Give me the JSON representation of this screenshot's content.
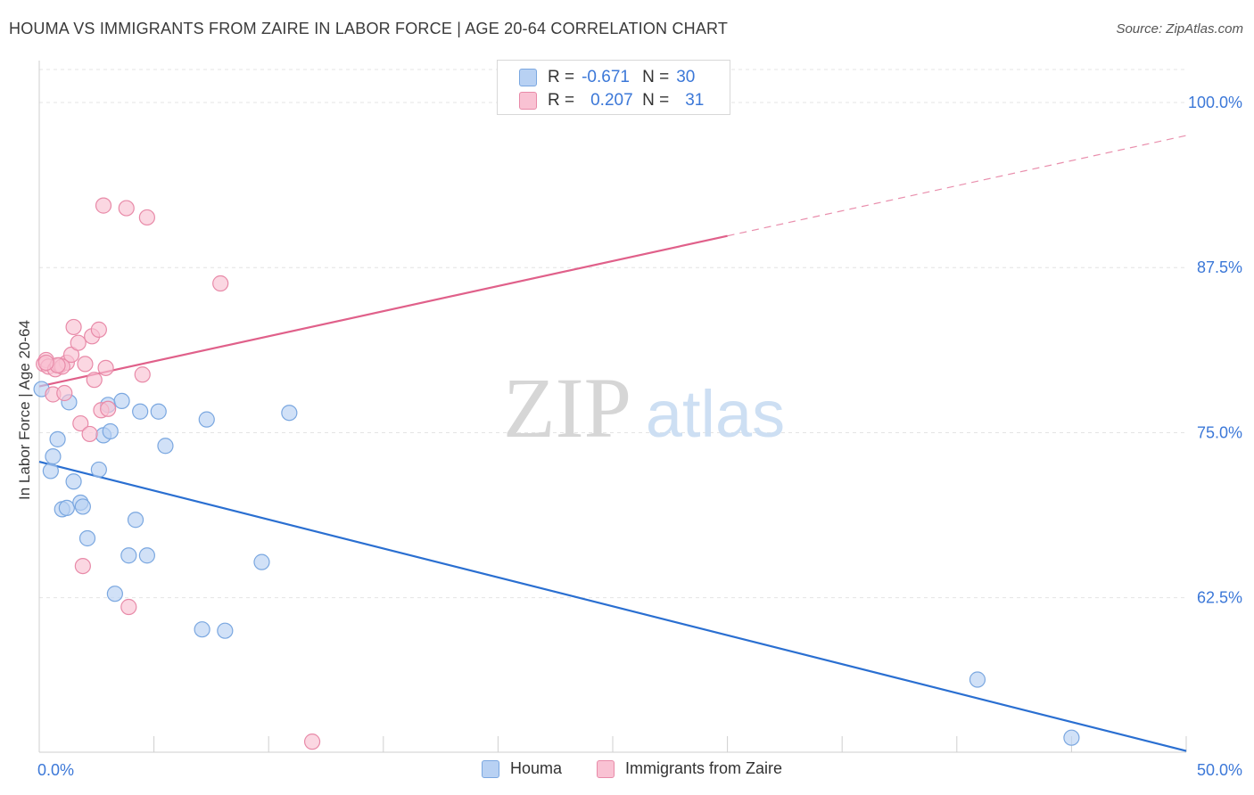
{
  "title": "HOUMA VS IMMIGRANTS FROM ZAIRE IN LABOR FORCE | AGE 20-64 CORRELATION CHART",
  "source": "Source: ZipAtlas.com",
  "watermark": {
    "zip": "ZIP",
    "atlas": "atlas"
  },
  "legend_top": [
    {
      "r_label": "R = ",
      "r_value": "-0.671",
      "n_label": "N = ",
      "n_value": "30"
    },
    {
      "r_label": "R = ",
      "r_value": "0.207",
      "n_label": "N = ",
      "n_value": "31"
    }
  ],
  "colors": {
    "houma_fill": "#b8d1f3",
    "houma_stroke": "#7aa7e0",
    "houma_line": "#2a6fd1",
    "zaire_fill": "#f9c2d3",
    "zaire_stroke": "#e88aa8",
    "zaire_line": "#e0608a",
    "tick_label": "#3c78d8",
    "grid": "#e4e4e4"
  },
  "chart_data": {
    "type": "scatter",
    "title": "HOUMA VS IMMIGRANTS FROM ZAIRE IN LABOR FORCE | AGE 20-64 CORRELATION CHART",
    "xlabel": "",
    "ylabel": "In Labor Force | Age 20-64",
    "xlim": [
      0,
      50
    ],
    "ylim": [
      50.8,
      102.5
    ],
    "x_tick_labels": [
      "0.0%",
      "50.0%"
    ],
    "y_ticks": [
      62.5,
      75.0,
      87.5,
      100.0
    ],
    "y_tick_labels": [
      "62.5%",
      "75.0%",
      "87.5%",
      "100.0%"
    ],
    "grid": true,
    "legend_position": "top-center",
    "series": [
      {
        "name": "Houma",
        "r": -0.671,
        "n": 30,
        "trend": {
          "x0": 0,
          "y0": 72.8,
          "x1": 50,
          "y1": 50.9,
          "dashed_from": null
        },
        "points": [
          [
            0.1,
            78.3
          ],
          [
            0.5,
            72.1
          ],
          [
            0.6,
            73.2
          ],
          [
            0.8,
            74.5
          ],
          [
            1.0,
            69.2
          ],
          [
            1.2,
            69.3
          ],
          [
            1.3,
            77.3
          ],
          [
            1.5,
            71.3
          ],
          [
            1.8,
            69.7
          ],
          [
            1.9,
            69.4
          ],
          [
            2.1,
            67.0
          ],
          [
            2.6,
            72.2
          ],
          [
            2.8,
            74.8
          ],
          [
            3.0,
            77.1
          ],
          [
            3.1,
            75.1
          ],
          [
            3.3,
            62.8
          ],
          [
            3.6,
            77.4
          ],
          [
            3.9,
            65.7
          ],
          [
            4.2,
            68.4
          ],
          [
            4.4,
            76.6
          ],
          [
            4.7,
            65.7
          ],
          [
            5.2,
            76.6
          ],
          [
            5.5,
            74.0
          ],
          [
            7.1,
            60.1
          ],
          [
            7.3,
            76.0
          ],
          [
            8.1,
            60.0
          ],
          [
            9.7,
            65.2
          ],
          [
            10.9,
            76.5
          ],
          [
            40.9,
            56.3
          ],
          [
            45.0,
            51.9
          ]
        ]
      },
      {
        "name": "Immigrants from Zaire",
        "r": 0.207,
        "n": 31,
        "trend": {
          "x0": 0,
          "y0": 78.5,
          "x1": 50,
          "y1": 97.5,
          "dashed_from": 30
        },
        "points": [
          [
            0.2,
            80.2
          ],
          [
            0.3,
            80.5
          ],
          [
            0.4,
            80.0
          ],
          [
            0.6,
            77.9
          ],
          [
            0.7,
            79.8
          ],
          [
            0.9,
            80.1
          ],
          [
            1.1,
            78.0
          ],
          [
            1.2,
            80.3
          ],
          [
            1.4,
            80.9
          ],
          [
            1.5,
            83.0
          ],
          [
            1.7,
            81.8
          ],
          [
            1.8,
            75.7
          ],
          [
            1.9,
            64.9
          ],
          [
            2.0,
            80.2
          ],
          [
            2.2,
            74.9
          ],
          [
            2.3,
            82.3
          ],
          [
            2.4,
            79.0
          ],
          [
            2.6,
            82.8
          ],
          [
            2.7,
            76.7
          ],
          [
            2.8,
            92.2
          ],
          [
            2.9,
            79.9
          ],
          [
            3.0,
            76.8
          ],
          [
            3.8,
            92.0
          ],
          [
            3.9,
            61.8
          ],
          [
            4.5,
            79.4
          ],
          [
            4.7,
            91.3
          ],
          [
            7.9,
            86.3
          ],
          [
            11.9,
            51.6
          ],
          [
            1.0,
            80.0
          ],
          [
            0.8,
            80.1
          ],
          [
            0.3,
            80.3
          ]
        ]
      }
    ]
  },
  "legend_bottom": [
    {
      "name": "Houma"
    },
    {
      "name": "Immigrants from Zaire"
    }
  ]
}
